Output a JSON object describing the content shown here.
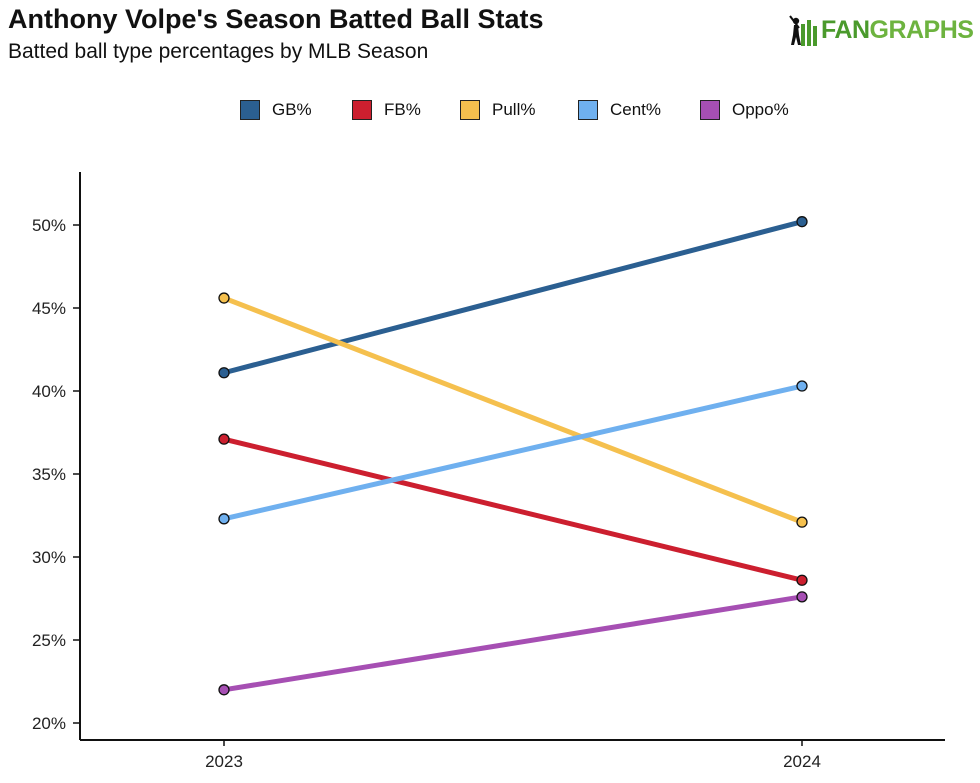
{
  "header": {
    "title": "Anthony Volpe's Season Batted Ball Stats",
    "subtitle": "Batted ball type percentages by MLB Season"
  },
  "logo": {
    "text_part1": "FAN",
    "text_part2": "GRAPHS",
    "color": "#4a9a2c"
  },
  "chart_data": {
    "type": "line",
    "title": "Anthony Volpe's Season Batted Ball Stats",
    "subtitle": "Batted ball type percentages by MLB Season",
    "x": [
      "2023",
      "2024"
    ],
    "ylim": [
      20,
      52
    ],
    "yticks": [
      20,
      25,
      30,
      35,
      40,
      45,
      50
    ],
    "ytick_labels": [
      "20%",
      "25%",
      "30%",
      "35%",
      "40%",
      "45%",
      "50%"
    ],
    "grid": false,
    "legend_position": "top",
    "series": [
      {
        "name": "GB%",
        "color": "#2b5f91",
        "values": [
          41.1,
          50.2
        ]
      },
      {
        "name": "FB%",
        "color": "#cc1f2f",
        "values": [
          37.1,
          28.6
        ]
      },
      {
        "name": "Pull%",
        "color": "#f5c04e",
        "values": [
          45.6,
          32.1
        ]
      },
      {
        "name": "Cent%",
        "color": "#6fb0ef",
        "values": [
          32.3,
          40.3
        ]
      },
      {
        "name": "Oppo%",
        "color": "#a64fb3",
        "values": [
          22.0,
          27.6
        ]
      }
    ]
  }
}
